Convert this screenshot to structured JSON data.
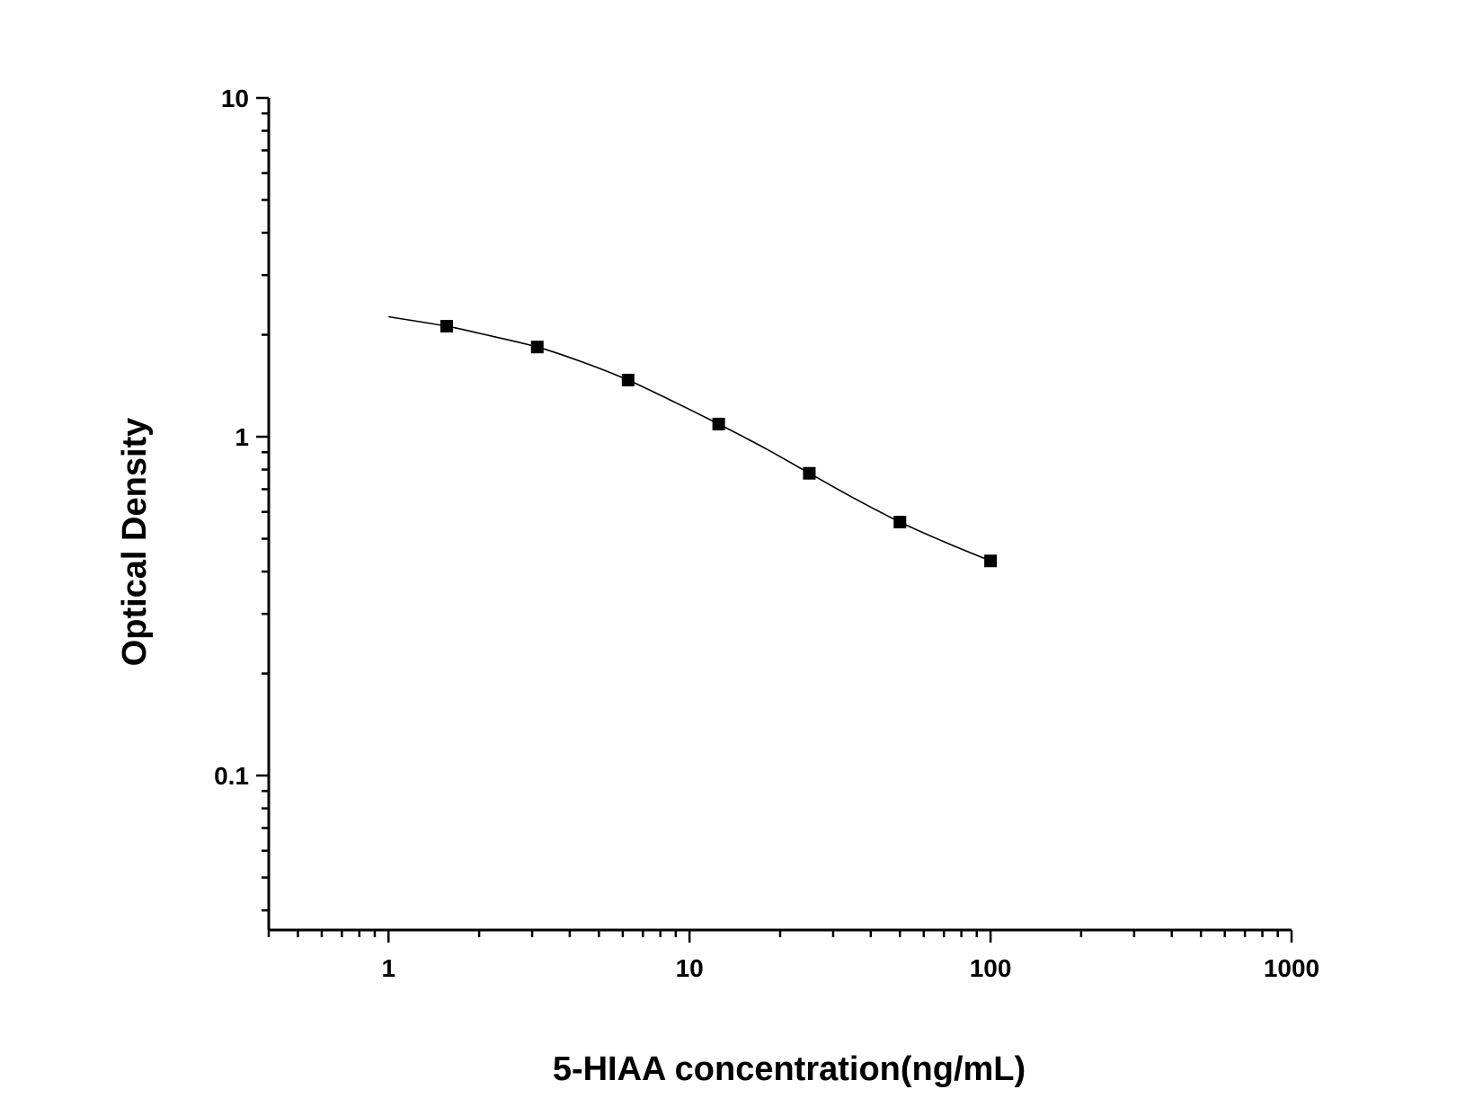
{
  "chart_data": {
    "type": "scatter",
    "title": "",
    "xlabel": "5-HIAA concentration(ng/mL)",
    "ylabel": "Optical Density",
    "x_scale": "log",
    "y_scale": "log",
    "xlim": [
      0.4,
      1000
    ],
    "ylim": [
      0.035,
      10
    ],
    "x_ticks": [
      {
        "value": 1,
        "label": "1"
      },
      {
        "value": 10,
        "label": "10"
      },
      {
        "value": 100,
        "label": "100"
      },
      {
        "value": 1000,
        "label": "1000"
      }
    ],
    "y_ticks": [
      {
        "value": 0.1,
        "label": "0.1"
      },
      {
        "value": 1,
        "label": "1"
      },
      {
        "value": 10,
        "label": "10"
      }
    ],
    "grid": false,
    "legend": "none",
    "series": [
      {
        "marker": "square",
        "color": "#000000",
        "points": [
          {
            "x": 1.56,
            "y": 2.12
          },
          {
            "x": 3.12,
            "y": 1.84
          },
          {
            "x": 6.25,
            "y": 1.47
          },
          {
            "x": 12.5,
            "y": 1.09
          },
          {
            "x": 25,
            "y": 0.78
          },
          {
            "x": 50,
            "y": 0.56
          },
          {
            "x": 100,
            "y": 0.43
          }
        ]
      }
    ],
    "fit_curve": {
      "color": "#000000",
      "points": [
        {
          "x": 1,
          "y": 2.26
        },
        {
          "x": 1.56,
          "y": 2.12
        },
        {
          "x": 2,
          "y": 2.02
        },
        {
          "x": 3.12,
          "y": 1.84
        },
        {
          "x": 4.5,
          "y": 1.65
        },
        {
          "x": 6.25,
          "y": 1.47
        },
        {
          "x": 9,
          "y": 1.26
        },
        {
          "x": 12.5,
          "y": 1.09
        },
        {
          "x": 18,
          "y": 0.92
        },
        {
          "x": 25,
          "y": 0.78
        },
        {
          "x": 35,
          "y": 0.66
        },
        {
          "x": 50,
          "y": 0.56
        },
        {
          "x": 70,
          "y": 0.49
        },
        {
          "x": 100,
          "y": 0.43
        }
      ]
    }
  }
}
